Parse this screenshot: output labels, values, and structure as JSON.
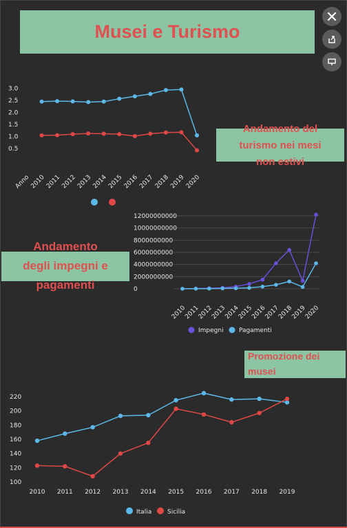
{
  "header": {
    "title": "Musei e Turismo"
  },
  "toolbar": {
    "close_icon": "close-icon",
    "share_icon": "share-icon",
    "present_icon": "present-icon"
  },
  "sections": {
    "turismo": {
      "label_line1": "Andamento del",
      "label_line2": "turismo nei mesi",
      "label_line3": "non estivi"
    },
    "impegni": {
      "label_line1": "Andamento",
      "label_line2": "degli impegni e",
      "label_line3": "pagamenti"
    },
    "musei": {
      "label_line1": "Promozione dei",
      "label_line2": "musei"
    }
  },
  "colors": {
    "blue": "#5cb8e8",
    "red": "#e04848",
    "purple": "#6a4fd8",
    "label_bg": "#8bc5a4",
    "label_text": "#e05050"
  },
  "chart_data": [
    {
      "type": "line",
      "categories": [
        "Anno",
        "2010",
        "2011",
        "2012",
        "2013",
        "2014",
        "2015",
        "2016",
        "2017",
        "2018",
        "2019",
        "2020"
      ],
      "yticks": [
        "3.0",
        "2.5",
        "2.0",
        "1.5",
        "1.0",
        "0.5"
      ],
      "ylim": [
        0.25,
        3.1
      ],
      "series": [
        {
          "values": [
            null,
            2.45,
            2.47,
            2.46,
            2.43,
            2.45,
            2.57,
            2.67,
            2.77,
            2.93,
            2.95,
            1.05
          ]
        },
        {
          "values": [
            null,
            1.05,
            1.06,
            1.1,
            1.13,
            1.12,
            1.1,
            1.02,
            1.12,
            1.17,
            1.18,
            0.43
          ]
        }
      ],
      "legend_markers": [
        "#5cb8e8",
        "#e04848"
      ]
    },
    {
      "type": "line",
      "categories": [
        "2010",
        "2011",
        "2012",
        "2013",
        "2014",
        "2015",
        "2016",
        "2017",
        "2018",
        "2019",
        "2020"
      ],
      "yticks": [
        "12000000000",
        "10000000000",
        "8000000000",
        "6000000000",
        "4000000000",
        "2000000000",
        "0"
      ],
      "ylim": [
        0,
        12000000000
      ],
      "series": [
        {
          "name": "Impegni",
          "values": [
            0,
            30000000,
            80000000,
            150000000,
            350000000,
            800000000,
            1500000000,
            4200000000,
            6400000000,
            1300000000,
            12200000000
          ]
        },
        {
          "name": "Pagamenti",
          "values": [
            0,
            10000000,
            20000000,
            50000000,
            80000000,
            150000000,
            350000000,
            650000000,
            1200000000,
            300000000,
            4200000000
          ]
        }
      ]
    },
    {
      "type": "line",
      "categories": [
        "2010",
        "2011",
        "2012",
        "2013",
        "2014",
        "2015",
        "2016",
        "2017",
        "2018",
        "2019"
      ],
      "yticks": [
        "220",
        "200",
        "180",
        "160",
        "140",
        "120",
        "100"
      ],
      "ylim": [
        100,
        220
      ],
      "series": [
        {
          "name": "Italia",
          "values": [
            158,
            168,
            177,
            193,
            194,
            215,
            225,
            216,
            217,
            212
          ]
        },
        {
          "name": "Sicilia",
          "values": [
            123,
            122,
            108,
            140,
            155,
            203,
            195,
            184,
            197,
            217
          ]
        }
      ]
    }
  ]
}
